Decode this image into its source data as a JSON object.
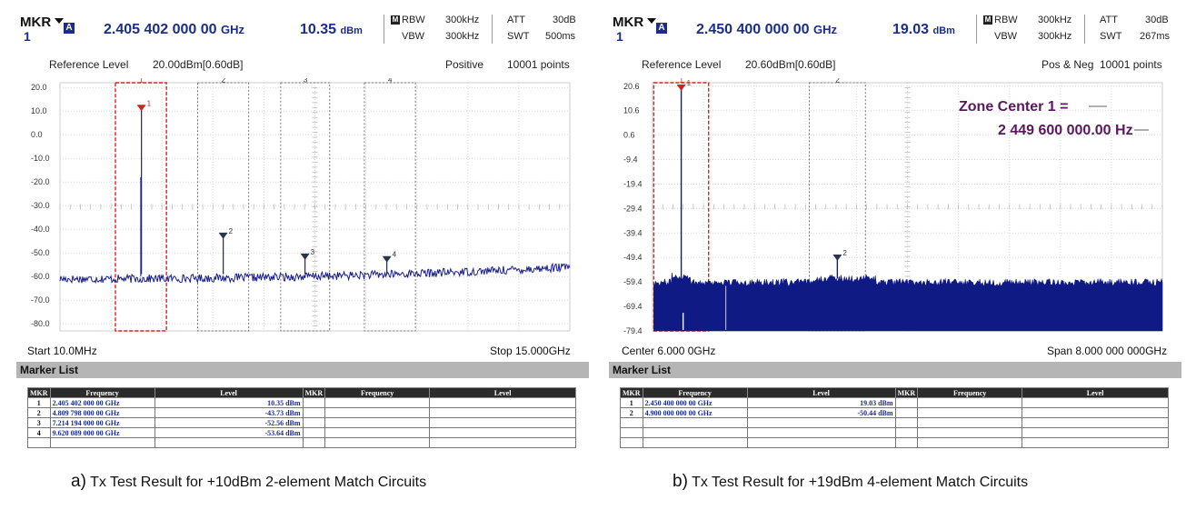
{
  "chart_data": [
    {
      "type": "line",
      "header": {
        "mkr_label": "MKR",
        "mkr_number": "1",
        "mkr_mode": "A",
        "frequency_value": "2.405 402 000 00",
        "frequency_unit": "GHz",
        "level_value": "10.35",
        "level_unit": "dBm",
        "rbw_label": "RBW",
        "rbw_value": "300kHz",
        "vbw_label": "VBW",
        "vbw_value": "300kHz",
        "att_label": "ATT",
        "att_value": "30dB",
        "swt_label": "SWT",
        "swt_value": "500ms"
      },
      "reference_level_label": "Reference Level",
      "reference_level_value": "20.00dBm[0.60dB]",
      "detector": "Positive",
      "points": "10001 points",
      "x_start_label": "Start 10.0MHz",
      "x_end_label": "Stop 15.000GHz",
      "xlim": [
        0.01,
        15.0
      ],
      "ylim": [
        -83,
        22
      ],
      "y_ticks": [
        "20.0",
        "10.0",
        "0.0",
        "-10.0",
        "-20.0",
        "-30.0",
        "-40.0",
        "-50.0",
        "-60.0",
        "-70.0",
        "-80.0"
      ],
      "y_tick_values": [
        20,
        10,
        0,
        -10,
        -20,
        -30,
        -40,
        -50,
        -60,
        -70,
        -80
      ],
      "noise_floor_start": -61,
      "noise_floor_end": -56,
      "noise_range": 3.5,
      "peaks": [
        {
          "freq_ghz": 2.4054,
          "level_dbm": 10.35
        },
        {
          "freq_ghz": 4.8098,
          "level_dbm": -43.73
        },
        {
          "freq_ghz": 7.2142,
          "level_dbm": -52.56
        },
        {
          "freq_ghz": 9.6201,
          "level_dbm": -53.64
        }
      ],
      "zones": [
        {
          "label": "1",
          "start_ghz": 1.64,
          "end_ghz": 3.14,
          "active": true
        },
        {
          "label": "2",
          "start_ghz": 4.06,
          "end_ghz": 5.56,
          "active": false
        },
        {
          "label": "3",
          "start_ghz": 6.5,
          "end_ghz": 7.94,
          "active": false
        },
        {
          "label": "4",
          "start_ghz": 8.96,
          "end_ghz": 10.46,
          "active": false
        }
      ],
      "markers": [
        {
          "label": "1",
          "freq_ghz": 2.4054,
          "level_dbm": 10.35
        },
        {
          "label": "2",
          "freq_ghz": 4.8098,
          "level_dbm": -43.73
        },
        {
          "label": "3",
          "freq_ghz": 7.2142,
          "level_dbm": -52.56
        },
        {
          "label": "4",
          "freq_ghz": 9.6201,
          "level_dbm": -53.64
        }
      ],
      "marker_list_title": "Marker List",
      "table_headers": [
        "MKR",
        "Frequency",
        "Level",
        "MKR",
        "Frequency",
        "Level"
      ],
      "table_rows": [
        [
          "1",
          "2.405 402 000 00 GHz",
          "10.35 dBm"
        ],
        [
          "2",
          "4.809 798 000 00 GHz",
          "-43.73 dBm"
        ],
        [
          "3",
          "7.214 194 000 00 GHz",
          "-52.56 dBm"
        ],
        [
          "4",
          "9.620 089 000 00 GHz",
          "-53.64 dBm"
        ],
        [
          "",
          "",
          ""
        ]
      ],
      "caption_letter": "a)",
      "caption_text": "Tx Test Result for +10dBm 2-element Match Circuits",
      "trace_color": "#1a1f8a"
    },
    {
      "type": "line",
      "header": {
        "mkr_label": "MKR",
        "mkr_number": "1",
        "mkr_mode": "A",
        "frequency_value": "2.450 400 000 00",
        "frequency_unit": "GHz",
        "level_value": "19.03",
        "level_unit": "dBm",
        "rbw_label": "RBW",
        "rbw_value": "300kHz",
        "vbw_label": "VBW",
        "vbw_value": "300kHz",
        "att_label": "ATT",
        "att_value": "30dB",
        "swt_label": "SWT",
        "swt_value": "267ms"
      },
      "reference_level_label": "Reference Level",
      "reference_level_value": "20.60dBm[0.60dB]",
      "detector": "Pos & Neg",
      "points": "10001 points",
      "x_start_label": "Center 6.000 0GHz",
      "x_end_label": "Span 8.000 000 000GHz",
      "xlim": [
        2.0,
        10.0
      ],
      "ylim": [
        -79.4,
        22
      ],
      "y_ticks": [
        "20.6",
        "10.6",
        "0.6",
        "-9.4",
        "-19.4",
        "-29.4",
        "-39.4",
        "-49.4",
        "-59.4",
        "-69.4",
        "-79.4"
      ],
      "y_tick_values": [
        20.6,
        10.6,
        0.6,
        -9.4,
        -19.4,
        -29.4,
        -39.4,
        -49.4,
        -59.4,
        -69.4,
        -79.4
      ],
      "fill_top": -59.6,
      "fill_range": 3.0,
      "peaks": [
        {
          "freq_ghz": 2.4504,
          "level_dbm": 19.03
        },
        {
          "freq_ghz": 4.9,
          "level_dbm": -50.44
        }
      ],
      "zones": [
        {
          "label": "1",
          "start_ghz": 2.02,
          "end_ghz": 2.88,
          "active": true
        },
        {
          "label": "2",
          "start_ghz": 4.46,
          "end_ghz": 5.34,
          "active": false
        }
      ],
      "markers": [
        {
          "label": "1",
          "freq_ghz": 2.4504,
          "level_dbm": 19.03
        },
        {
          "label": "2",
          "freq_ghz": 4.9,
          "level_dbm": -50.44
        }
      ],
      "annotation": {
        "line1": "Zone Center 1 =",
        "line2": "2 449 600 000.00 Hz",
        "color": "#5a1760"
      },
      "marker_list_title": "Marker List",
      "table_headers": [
        "MKR",
        "Frequency",
        "Level",
        "MKR",
        "Frequency",
        "Level"
      ],
      "table_rows": [
        [
          "1",
          "2.450 400 000 00 GHz",
          "19.03 dBm"
        ],
        [
          "2",
          "4.900 000 000 00 GHz",
          "-50.44 dBm"
        ],
        [
          "",
          "",
          ""
        ],
        [
          "",
          "",
          ""
        ],
        [
          "",
          "",
          ""
        ]
      ],
      "caption_letter": "b)",
      "caption_text": "Tx Test Result for +19dBm 4-element Match Circuits",
      "trace_color": "#0f1a85"
    }
  ]
}
